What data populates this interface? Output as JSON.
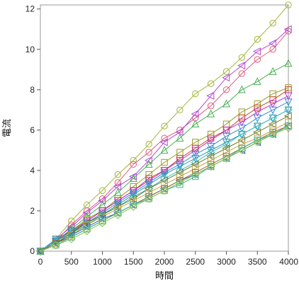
{
  "chart_data": {
    "type": "line",
    "xlabel": "時間",
    "ylabel": "電流",
    "xlim": [
      0,
      4000
    ],
    "ylim": [
      0,
      12.2
    ],
    "xticks": [
      0,
      500,
      1000,
      1500,
      2000,
      2500,
      3000,
      3500,
      4000
    ],
    "yticks": [
      0,
      2,
      4,
      6,
      8,
      10,
      12
    ],
    "x": [
      0,
      250,
      500,
      750,
      1000,
      1250,
      1500,
      1750,
      2000,
      2250,
      2500,
      2750,
      3000,
      3250,
      3500,
      3750,
      4000
    ],
    "grid": false,
    "legend": "none",
    "series": [
      {
        "color": "#a3b53a",
        "marker": "circle",
        "values": [
          0,
          0.6,
          1.5,
          2.3,
          3.0,
          3.8,
          4.5,
          5.3,
          6.2,
          7.0,
          7.8,
          8.3,
          8.9,
          9.6,
          10.5,
          11.3,
          12.2
        ]
      },
      {
        "color": "#e05b7a",
        "marker": "circle",
        "values": [
          0,
          0.5,
          1.3,
          2.0,
          2.6,
          3.4,
          4.3,
          4.9,
          5.6,
          6.0,
          6.6,
          7.2,
          8.0,
          8.8,
          9.5,
          10.0,
          10.9
        ]
      },
      {
        "color": "#b24ad6",
        "marker": "triangle-left",
        "values": [
          0,
          0.6,
          1.2,
          1.9,
          2.5,
          3.2,
          3.7,
          4.5,
          5.4,
          5.9,
          6.8,
          7.7,
          8.6,
          9.2,
          9.9,
          10.3,
          11.0
        ]
      },
      {
        "color": "#4cae56",
        "marker": "triangle-up",
        "values": [
          0,
          0.5,
          1.1,
          1.7,
          2.3,
          2.9,
          3.6,
          4.3,
          5.0,
          5.6,
          6.3,
          6.8,
          7.3,
          8.0,
          8.4,
          8.9,
          9.3
        ]
      },
      {
        "color": "#9a9a2a",
        "marker": "square",
        "values": [
          0,
          0.5,
          1.0,
          1.6,
          2.0,
          2.6,
          3.2,
          3.8,
          4.4,
          4.9,
          5.4,
          5.8,
          6.3,
          6.9,
          7.3,
          7.8,
          8.1
        ]
      },
      {
        "color": "#c24a2c",
        "marker": "square",
        "values": [
          0,
          0.5,
          1.0,
          1.5,
          2.0,
          2.5,
          3.0,
          3.6,
          4.0,
          4.6,
          5.1,
          5.6,
          6.0,
          6.6,
          7.1,
          7.5,
          8.0
        ]
      },
      {
        "color": "#c42fc0",
        "marker": "triangle-down",
        "values": [
          0,
          0.5,
          0.9,
          1.5,
          2.0,
          2.5,
          3.0,
          3.5,
          4.0,
          4.5,
          5.0,
          5.5,
          6.0,
          6.4,
          6.9,
          7.3,
          7.7
        ]
      },
      {
        "color": "#3a88d6",
        "marker": "triangle-down",
        "values": [
          0,
          0.5,
          0.9,
          1.4,
          1.9,
          2.4,
          2.9,
          3.4,
          3.9,
          4.3,
          4.8,
          5.2,
          5.7,
          6.1,
          6.6,
          7.0,
          7.4
        ]
      },
      {
        "color": "#2f9aa8",
        "marker": "triangle-down",
        "values": [
          0,
          0.6,
          1.0,
          1.4,
          1.8,
          2.3,
          2.8,
          3.3,
          3.8,
          4.2,
          4.6,
          5.0,
          5.4,
          5.8,
          6.2,
          6.6,
          7.0
        ]
      },
      {
        "color": "#3fb8c9",
        "marker": "diamond",
        "values": [
          0,
          0.5,
          0.9,
          1.3,
          1.8,
          2.2,
          2.7,
          3.1,
          3.6,
          4.0,
          4.4,
          4.9,
          5.3,
          5.8,
          6.2,
          6.6,
          7.0
        ]
      },
      {
        "color": "#6b7a2a",
        "marker": "triangle-left",
        "values": [
          0,
          0.4,
          0.9,
          1.4,
          1.8,
          2.2,
          2.6,
          3.1,
          3.5,
          3.9,
          4.3,
          4.7,
          5.1,
          5.5,
          5.9,
          6.3,
          6.7
        ]
      },
      {
        "color": "#c9a23a",
        "marker": "square",
        "values": [
          0,
          0.4,
          0.8,
          1.3,
          1.7,
          2.1,
          2.5,
          2.9,
          3.3,
          3.7,
          4.1,
          4.5,
          4.9,
          5.3,
          5.6,
          6.0,
          6.4
        ]
      },
      {
        "color": "#2d5aa8",
        "marker": "triangle-left",
        "values": [
          0,
          0.4,
          0.8,
          1.2,
          1.6,
          1.9,
          2.3,
          2.7,
          3.1,
          3.5,
          3.8,
          4.2,
          4.6,
          5.0,
          5.4,
          5.8,
          6.2
        ]
      },
      {
        "color": "#9b6e2a",
        "marker": "square",
        "values": [
          0,
          0.4,
          0.7,
          1.1,
          1.5,
          1.9,
          2.3,
          2.7,
          3.1,
          3.5,
          3.9,
          4.3,
          4.7,
          5.1,
          5.5,
          5.9,
          6.2
        ]
      },
      {
        "color": "#35b3a0",
        "marker": "square",
        "values": [
          0,
          0.3,
          0.7,
          1.1,
          1.5,
          1.9,
          2.3,
          2.6,
          3.0,
          3.3,
          3.7,
          4.2,
          4.6,
          5.1,
          5.5,
          5.8,
          6.2
        ]
      },
      {
        "color": "#88c04a",
        "marker": "diamond",
        "values": [
          0,
          0.3,
          0.6,
          1.0,
          1.4,
          1.8,
          2.2,
          2.6,
          3.0,
          3.4,
          3.8,
          4.2,
          4.6,
          5.0,
          5.4,
          5.8,
          6.1
        ]
      }
    ]
  }
}
